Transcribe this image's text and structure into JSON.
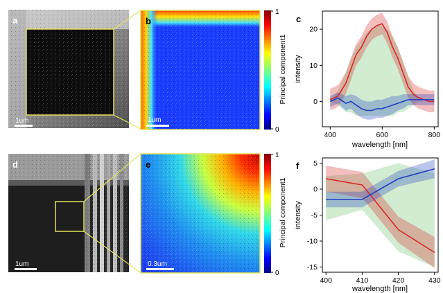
{
  "panels": {
    "a": {
      "letter": "a",
      "scalebar": "1um"
    },
    "b": {
      "letter": "b",
      "scalebar": "1um",
      "colorbar_label": "Principal component1",
      "colorbar_ticks": [
        "1",
        "0"
      ]
    },
    "c": {
      "letter": "c"
    },
    "d": {
      "letter": "d",
      "scalebar": "1um"
    },
    "e": {
      "letter": "e",
      "scalebar": "0.3um",
      "colorbar_label": "Principal component1",
      "colorbar_ticks": [
        "1",
        "0"
      ]
    },
    "f": {
      "letter": "f"
    }
  },
  "colors": {
    "red": "#d62728",
    "blue": "#1f3fbf",
    "green_band": "#8fcf8f",
    "outline": "#e3e35a"
  },
  "chart_data": [
    {
      "panel": "c",
      "type": "line",
      "xlabel": "wavelength [nm]",
      "ylabel": "intensity",
      "xlim": [
        370,
        815
      ],
      "ylim": [
        -7,
        25
      ],
      "xticks": [
        400,
        600,
        800
      ],
      "yticks": [
        0,
        10,
        20
      ],
      "series": [
        {
          "color": "#d62728",
          "x": [
            400,
            430,
            460,
            480,
            500,
            520,
            540,
            560,
            580,
            600,
            620,
            640,
            660,
            680,
            700,
            720,
            740,
            760,
            780,
            800
          ],
          "values": [
            0.5,
            1.5,
            5,
            9,
            13,
            15,
            18,
            20,
            21,
            21.5,
            19,
            15,
            12,
            8,
            4,
            2,
            1,
            0.5,
            0,
            0
          ],
          "band": [
            3,
            3,
            3,
            3,
            3,
            3,
            3,
            3,
            3,
            3,
            3,
            3,
            3,
            3,
            3,
            3,
            3,
            3,
            3,
            3
          ]
        },
        {
          "color": "#1f3fbf",
          "x": [
            400,
            430,
            460,
            480,
            500,
            520,
            540,
            560,
            580,
            600,
            620,
            640,
            660,
            680,
            700,
            720,
            740,
            760,
            780,
            800
          ],
          "values": [
            0,
            1,
            -0.5,
            0,
            -1,
            -2,
            -2.5,
            -2.5,
            -2,
            -2,
            -1.5,
            -1,
            -0.5,
            0,
            0.5,
            0.5,
            0.5,
            0.5,
            0.5,
            0.5
          ],
          "band": [
            1.5,
            1.5,
            2,
            2,
            2.5,
            2.5,
            2.5,
            2.5,
            2.5,
            2.5,
            2.5,
            2.5,
            2,
            2,
            1.5,
            1.5,
            1.5,
            1.5,
            1.5,
            1.5
          ]
        },
        {
          "color": "#8fcf8f",
          "x": [
            400,
            430,
            460,
            480,
            500,
            520,
            540,
            560,
            580,
            600,
            620,
            640,
            660,
            680,
            700,
            720,
            740,
            760,
            780,
            800
          ],
          "upper": [
            0,
            3,
            8,
            12,
            15,
            17,
            19,
            20,
            21,
            21,
            20,
            18,
            15,
            11,
            7,
            3,
            1,
            0,
            0,
            0
          ],
          "lower": [
            0,
            -1,
            -3,
            -3,
            -4,
            -4,
            -4,
            -4,
            -4,
            -4,
            -4,
            -4,
            -3,
            -3,
            -2,
            -1,
            0,
            0,
            0,
            0
          ]
        }
      ]
    },
    {
      "panel": "f",
      "type": "line",
      "xlabel": "wavelength [nm]",
      "ylabel": "intensity",
      "xlim": [
        399,
        431
      ],
      "ylim": [
        -16,
        6
      ],
      "xticks": [
        400,
        410,
        420,
        430
      ],
      "yticks": [
        5,
        0,
        -5,
        -10,
        -15
      ],
      "series": [
        {
          "color": "#d62728",
          "x": [
            400,
            410,
            420,
            430
          ],
          "values": [
            2,
            0.8,
            -7.8,
            -12.2
          ],
          "band": [
            2.5,
            2.5,
            2.5,
            3
          ]
        },
        {
          "color": "#1f3fbf",
          "x": [
            400,
            410,
            420,
            430
          ],
          "values": [
            -2,
            -2,
            2,
            3.9
          ],
          "band": [
            1.5,
            1.5,
            1.5,
            1.8
          ]
        },
        {
          "color": "#8fcf8f",
          "x": [
            400,
            410,
            420,
            430
          ],
          "upper": [
            2.5,
            3,
            5,
            3
          ],
          "lower": [
            -6,
            -4,
            -12,
            -15
          ]
        }
      ]
    }
  ]
}
